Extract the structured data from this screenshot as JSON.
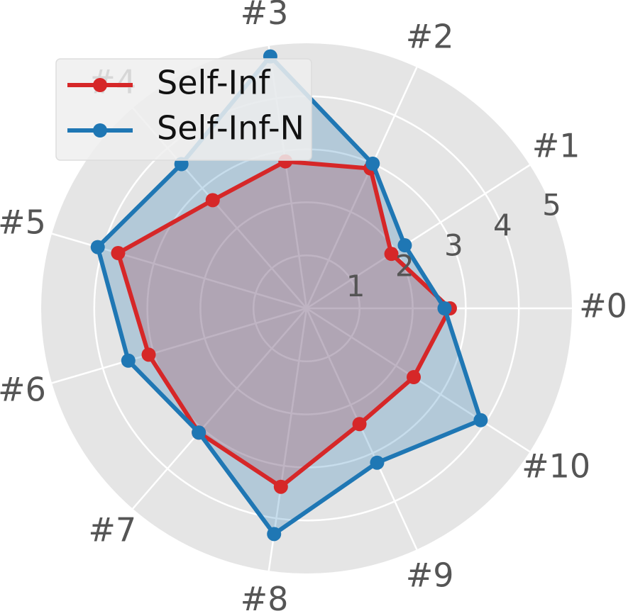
{
  "chart_data": {
    "type": "radar",
    "categories": [
      "#0",
      "#1",
      "#2",
      "#3",
      "#4",
      "#5",
      "#6",
      "#7",
      "#8",
      "#9",
      "#10"
    ],
    "r_ticks": [
      "1",
      "2",
      "3",
      "4",
      "5"
    ],
    "r_max": 5,
    "grid": true,
    "legend_position": "top-left",
    "series": [
      {
        "name": "Self-Inf",
        "color": "#d62728",
        "values": [
          2.7,
          1.9,
          2.9,
          2.8,
          2.7,
          3.7,
          3.1,
          3.1,
          3.4,
          2.4,
          2.4
        ]
      },
      {
        "name": "Self-Inf-N",
        "color": "#1f77b4",
        "values": [
          2.6,
          2.2,
          3.0,
          4.8,
          3.6,
          4.1,
          3.5,
          3.1,
          4.3,
          3.2,
          3.9
        ]
      }
    ]
  }
}
